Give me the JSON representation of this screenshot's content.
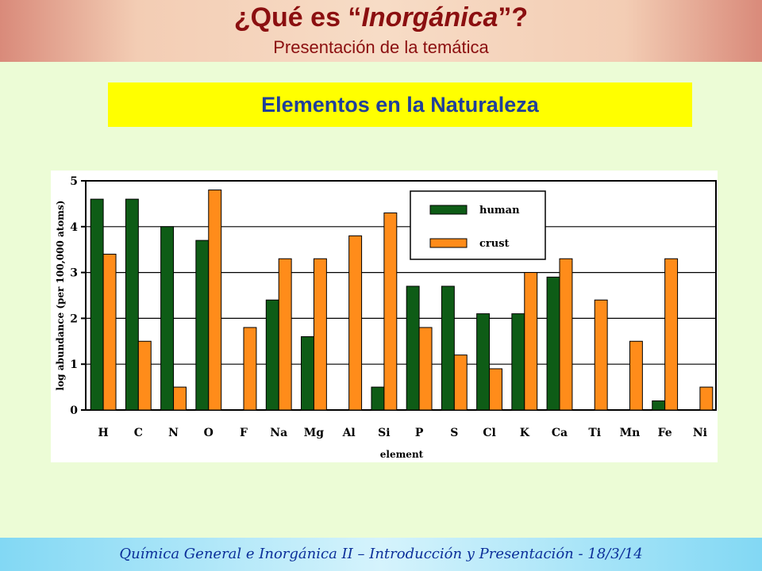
{
  "header": {
    "title_pre": "¿Qué es “",
    "title_em": "Inorgánica",
    "title_post": "”?",
    "subtitle": "Presentación de la temática"
  },
  "banner": {
    "text": "Elementos en la Naturaleza"
  },
  "footer": {
    "text": "Química General e Inorgánica II – Introducción y Presentación - 18/3/14"
  },
  "colors": {
    "human": "#0e5c16",
    "crust": "#ff8c1a",
    "title": "#8b0f10",
    "banner_text": "#1f3f9a"
  },
  "chart_data": {
    "type": "bar",
    "title": "",
    "xlabel": "element",
    "ylabel": "log abundance (per 100,000 atoms)",
    "ylim": [
      0,
      5
    ],
    "yticks": [
      0,
      1,
      2,
      3,
      4,
      5
    ],
    "grid": "horizontal",
    "legend_position": "top-right",
    "categories": [
      "H",
      "C",
      "N",
      "O",
      "F",
      "Na",
      "Mg",
      "Al",
      "Si",
      "P",
      "S",
      "Cl",
      "K",
      "Ca",
      "Ti",
      "Mn",
      "Fe",
      "Ni"
    ],
    "series": [
      {
        "name": "human",
        "values": [
          4.6,
          4.6,
          4.0,
          3.7,
          0,
          2.4,
          1.6,
          0,
          0.5,
          2.7,
          2.7,
          2.1,
          2.1,
          2.9,
          0,
          0,
          0.2,
          0
        ]
      },
      {
        "name": "crust",
        "values": [
          3.4,
          1.5,
          0.5,
          4.8,
          1.8,
          3.3,
          3.3,
          3.8,
          4.3,
          1.8,
          1.2,
          0.9,
          3.0,
          3.3,
          2.4,
          1.5,
          3.3,
          0.5
        ]
      }
    ]
  }
}
